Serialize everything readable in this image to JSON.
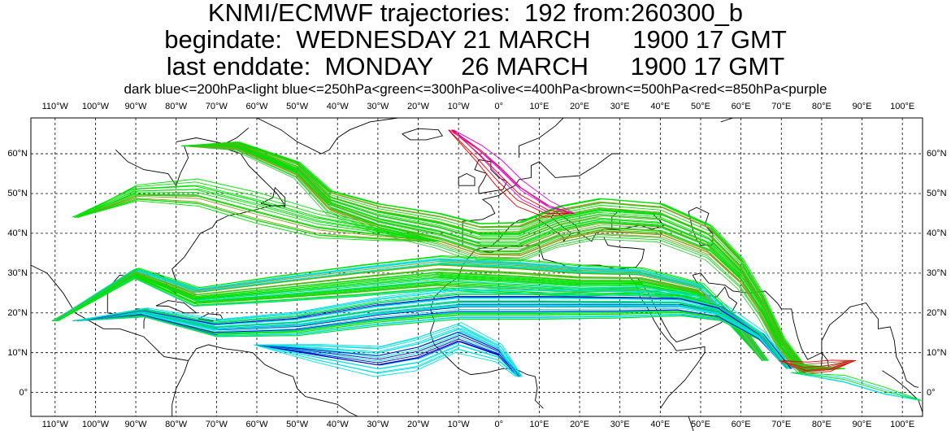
{
  "header": {
    "line1": "KNMI/ECMWF trajectories:  192 from:260300_b",
    "line2": "begindate:  WEDNESDAY 21 MARCH      1900 17 GMT",
    "line3": "last enddate:  MONDAY    26 MARCH      1900 17 GMT"
  },
  "legend_text": "dark blue<=200hPa<light blue<=250hPa<green<=300hPa<olive<=400hPa<brown<=500hPa<red<=850hPa<purple",
  "legend_colors": {
    "dark_blue": "#0000c8",
    "light_blue": "#00e0e0",
    "green": "#00e000",
    "olive": "#8aa020",
    "brown": "#a06030",
    "red": "#e00000",
    "purple": "#e000e0"
  },
  "lon_labels": [
    "110°W",
    "100°W",
    "90°W",
    "80°W",
    "70°W",
    "60°W",
    "50°W",
    "40°W",
    "30°W",
    "20°W",
    "10°W",
    "0°",
    "10°E",
    "20°E",
    "30°E",
    "40°E",
    "50°E",
    "60°E",
    "70°E",
    "80°E",
    "90°E",
    "100°E"
  ],
  "lat_labels": [
    "60°N",
    "50°N",
    "40°N",
    "30°N",
    "20°N",
    "10°N",
    "0°"
  ],
  "map_extent": {
    "lon_min": -116,
    "lon_max": 105,
    "lat_min": -6,
    "lat_max": 69
  }
}
